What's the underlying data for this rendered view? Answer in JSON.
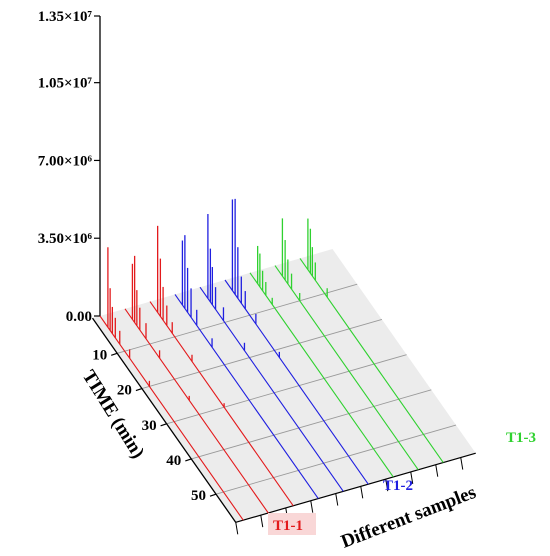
{
  "chart_data": {
    "type": "line",
    "chart_kind": "3D waterfall chromatogram",
    "xlabel": "Different samples",
    "tlabel": "TIME (min)",
    "ylabel": "",
    "yticks": [
      "0.00",
      "3.50×10⁶",
      "7.00×10⁶",
      "1.05×10⁷",
      "1.35×10⁷"
    ],
    "ytick_values": [
      0,
      3500000,
      7000000,
      10500000,
      13500000
    ],
    "ylim": [
      0,
      13500000
    ],
    "tticks": [
      "10",
      "20",
      "30",
      "40",
      "50"
    ],
    "tick_values": [
      10,
      20,
      30,
      40,
      50
    ],
    "tlim": [
      0,
      58
    ],
    "sample_groups": [
      {
        "name": "T1-1",
        "color": "#e31a1c"
      },
      {
        "name": "T1-2",
        "color": "#1f1fe0"
      },
      {
        "name": "T1-3",
        "color": "#2fd12f"
      }
    ],
    "series": [
      {
        "group": 0,
        "peaks": [
          [
            3.2,
            3600000
          ],
          [
            4.1,
            1900000
          ],
          [
            5.0,
            1200000
          ],
          [
            6.2,
            900000
          ],
          [
            8.0,
            600000
          ],
          [
            12.0,
            400000
          ],
          [
            20.0,
            250000
          ]
        ]
      },
      {
        "group": 0,
        "peaks": [
          [
            3.0,
            2500000
          ],
          [
            3.9,
            3000000
          ],
          [
            4.8,
            1600000
          ],
          [
            6.0,
            1000000
          ],
          [
            8.5,
            700000
          ],
          [
            14.0,
            350000
          ],
          [
            26.0,
            200000
          ]
        ]
      },
      {
        "group": 0,
        "peaks": [
          [
            3.1,
            3900000
          ],
          [
            4.2,
            2600000
          ],
          [
            5.3,
            1500000
          ],
          [
            6.8,
            900000
          ],
          [
            9.0,
            500000
          ],
          [
            17.0,
            300000
          ],
          [
            30.0,
            180000
          ]
        ]
      },
      {
        "group": 1,
        "peaks": [
          [
            3.0,
            2900000
          ],
          [
            4.0,
            3300000
          ],
          [
            5.1,
            2000000
          ],
          [
            6.5,
            1300000
          ],
          [
            8.8,
            700000
          ],
          [
            15.0,
            400000
          ]
        ]
      },
      {
        "group": 1,
        "peaks": [
          [
            3.2,
            3800000
          ],
          [
            4.2,
            2400000
          ],
          [
            5.0,
            1700000
          ],
          [
            6.3,
            1000000
          ],
          [
            9.5,
            600000
          ],
          [
            18.0,
            350000
          ]
        ]
      },
      {
        "group": 1,
        "peaks": [
          [
            3.0,
            4100000
          ],
          [
            4.1,
            4300000
          ],
          [
            5.2,
            2300000
          ],
          [
            6.6,
            1200000
          ],
          [
            8.2,
            800000
          ],
          [
            12.5,
            450000
          ],
          [
            22.0,
            250000
          ]
        ]
      },
      {
        "group": 2,
        "peaks": [
          [
            3.1,
            1700000
          ],
          [
            4.0,
            1500000
          ],
          [
            5.1,
            900000
          ],
          [
            6.4,
            600000
          ],
          [
            9.0,
            300000
          ]
        ]
      },
      {
        "group": 2,
        "peaks": [
          [
            3.0,
            2600000
          ],
          [
            4.1,
            1800000
          ],
          [
            5.2,
            1100000
          ],
          [
            6.7,
            700000
          ],
          [
            10.0,
            350000
          ]
        ]
      },
      {
        "group": 2,
        "peaks": [
          [
            3.2,
            2300000
          ],
          [
            4.2,
            2000000
          ],
          [
            5.0,
            1300000
          ],
          [
            6.2,
            800000
          ],
          [
            11.0,
            400000
          ]
        ]
      }
    ],
    "grid": true
  }
}
